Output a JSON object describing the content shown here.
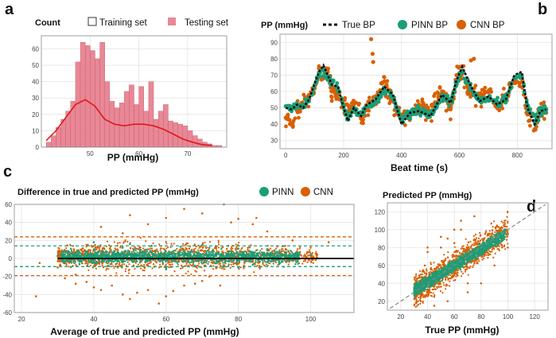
{
  "colors": {
    "hist_fill": "#e88896",
    "hist_stroke": "#c9566a",
    "kde": "#e01818",
    "pinn": "#1a9e77",
    "cnn": "#d95f02",
    "true_bp": "#111111",
    "zero_line": "#000000",
    "identity": "#888888"
  },
  "chart_data": [
    {
      "panel": "a",
      "type": "bar",
      "title": "Count",
      "xlabel": "PP (mmHg)",
      "ylabel": "Count",
      "xlim": [
        40,
        78
      ],
      "ylim": [
        0,
        68
      ],
      "x_ticks": [
        50,
        60,
        70
      ],
      "y_ticks": [
        0,
        10,
        20,
        30,
        40,
        50,
        60
      ],
      "legend": [
        {
          "label": "Training set",
          "style": "open-square"
        },
        {
          "label": "Testing set",
          "style": "filled-square"
        }
      ],
      "bin_start": 41,
      "bin_width": 1,
      "series": [
        {
          "name": "Testing set",
          "values": [
            3,
            7,
            12,
            17,
            22,
            28,
            52,
            64,
            62,
            59,
            54,
            64,
            40,
            28,
            24,
            27,
            34,
            38,
            26,
            37,
            22,
            40,
            17,
            22,
            26,
            16,
            15,
            14,
            13,
            10,
            7,
            5,
            3,
            2,
            1,
            1
          ]
        },
        {
          "name": "Training set (density)",
          "type": "line",
          "x": [
            41,
            43,
            45,
            47,
            49,
            51,
            53,
            55,
            57,
            59,
            61,
            63,
            65,
            67,
            69,
            71,
            73,
            75
          ],
          "values": [
            4,
            10,
            18,
            26,
            29,
            25,
            17,
            14,
            13,
            14,
            14,
            13,
            11,
            8,
            5,
            3,
            1.5,
            1
          ]
        }
      ]
    },
    {
      "panel": "b",
      "type": "scatter",
      "title": "PP (mmHg)",
      "xlabel": "Beat time (s)",
      "ylabel": "PP (mmHg)",
      "xlim": [
        -20,
        920
      ],
      "ylim": [
        25,
        95
      ],
      "x_ticks": [
        0,
        200,
        400,
        600,
        800
      ],
      "y_ticks": [
        30,
        40,
        50,
        60,
        70,
        80,
        90
      ],
      "legend": [
        "True BP",
        "PINN BP",
        "CNN BP"
      ],
      "series": [
        {
          "name": "True BP",
          "style": "dashed",
          "x": [
            0,
            20,
            40,
            60,
            80,
            100,
            115,
            130,
            145,
            160,
            180,
            200,
            215,
            235,
            260,
            280,
            310,
            340,
            370,
            400,
            430,
            460,
            500,
            540,
            570,
            590,
            610,
            640,
            670,
            700,
            730,
            760,
            790,
            815,
            835,
            860,
            880,
            900
          ],
          "values": [
            50,
            49,
            52,
            50,
            55,
            65,
            72,
            76,
            70,
            64,
            63,
            50,
            42,
            50,
            45,
            52,
            55,
            63,
            58,
            40,
            47,
            48,
            45,
            58,
            53,
            67,
            75,
            63,
            54,
            57,
            52,
            55,
            70,
            72,
            50,
            40,
            48,
            49
          ]
        },
        {
          "name": "PINN BP",
          "x": [
            0,
            20,
            40,
            60,
            80,
            100,
            115,
            130,
            145,
            160,
            180,
            200,
            215,
            235,
            260,
            280,
            310,
            340,
            370,
            400,
            430,
            460,
            500,
            540,
            570,
            590,
            610,
            640,
            670,
            700,
            730,
            760,
            790,
            815,
            835,
            860,
            880,
            900
          ],
          "values": [
            51,
            50,
            51,
            51,
            54,
            64,
            70,
            73,
            69,
            65,
            62,
            51,
            43,
            49,
            46,
            51,
            54,
            61,
            57,
            42,
            47,
            48,
            46,
            56,
            54,
            65,
            72,
            62,
            55,
            56,
            53,
            55,
            68,
            70,
            51,
            42,
            48,
            49
          ]
        },
        {
          "name": "CNN BP",
          "x": [
            0,
            20,
            40,
            60,
            80,
            100,
            115,
            130,
            145,
            160,
            180,
            200,
            215,
            235,
            260,
            280,
            310,
            340,
            370,
            400,
            430,
            460,
            500,
            540,
            570,
            590,
            610,
            640,
            670,
            700,
            730,
            760,
            790,
            815,
            835,
            860,
            880,
            900,
            295,
            300,
            302,
            640,
            650
          ],
          "values": [
            44,
            40,
            48,
            52,
            56,
            62,
            74,
            68,
            72,
            60,
            58,
            55,
            46,
            52,
            44,
            49,
            57,
            66,
            54,
            44,
            45,
            52,
            48,
            60,
            50,
            70,
            72,
            58,
            57,
            60,
            50,
            58,
            66,
            68,
            46,
            37,
            50,
            47,
            92,
            83,
            78,
            79,
            80
          ]
        }
      ]
    },
    {
      "panel": "c",
      "type": "scatter",
      "title": "Difference in true and predicted PP (mmHg)",
      "xlabel": "Average of true and predicted PP (mmHg)",
      "ylabel": "Difference in true and predicted PP (mmHg)",
      "xlim": [
        18,
        112
      ],
      "ylim": [
        -60,
        60
      ],
      "x_ticks": [
        20,
        40,
        60,
        80,
        100
      ],
      "y_ticks": [
        -60,
        -40,
        -20,
        0,
        20,
        40,
        60
      ],
      "legend": [
        "PINN",
        "CNN"
      ],
      "reference_lines": [
        {
          "name": "zero",
          "value": 0
        },
        {
          "name": "PINN upper LoA",
          "value": 14
        },
        {
          "name": "PINN lower LoA",
          "value": -9
        },
        {
          "name": "CNN upper LoA",
          "value": 24
        },
        {
          "name": "CNN lower LoA",
          "value": -19
        }
      ],
      "series": [
        {
          "name": "CNN",
          "x": [
            30,
            32,
            35,
            38,
            40,
            42,
            45,
            48,
            50,
            52,
            55,
            58,
            60,
            62,
            65,
            68,
            70,
            72,
            75,
            78,
            80,
            84,
            88,
            95,
            100,
            42,
            50,
            60,
            70,
            76,
            48,
            55,
            65,
            85,
            25,
            35,
            24,
            105
          ],
          "values": [
            -10,
            -22,
            -28,
            -26,
            -32,
            -35,
            -30,
            -40,
            -45,
            -38,
            -35,
            -50,
            -42,
            -36,
            -30,
            -28,
            -25,
            -20,
            -30,
            40,
            44,
            38,
            30,
            20,
            12,
            35,
            48,
            45,
            50,
            60,
            28,
            38,
            55,
            45,
            -5,
            -18,
            -42,
            18
          ]
        },
        {
          "name": "PINN",
          "x": [
            30,
            33,
            36,
            40,
            44,
            48,
            52,
            56,
            60,
            64,
            68,
            72,
            76,
            80,
            84,
            88,
            92,
            96,
            100,
            40,
            50,
            60,
            70,
            80,
            90
          ],
          "values": [
            3,
            8,
            -6,
            10,
            -8,
            12,
            -9,
            14,
            -10,
            13,
            -8,
            12,
            -9,
            11,
            -7,
            10,
            8,
            6,
            4,
            18,
            16,
            -12,
            15,
            -10,
            9
          ]
        }
      ]
    },
    {
      "panel": "d",
      "type": "scatter",
      "title": "Predicted PP (mmHg)",
      "xlabel": "True PP (mmHg)",
      "ylabel": "Predicted PP (mmHg)",
      "xlim": [
        10,
        130
      ],
      "ylim": [
        10,
        130
      ],
      "x_ticks": [
        20,
        40,
        60,
        80,
        100,
        120
      ],
      "y_ticks": [
        20,
        40,
        60,
        80,
        100,
        120
      ],
      "reference_lines": [
        {
          "name": "identity",
          "slope": 1,
          "intercept": 0
        }
      ],
      "series": [
        {
          "name": "CNN",
          "x": [
            30,
            32,
            35,
            38,
            40,
            45,
            50,
            55,
            60,
            65,
            70,
            75,
            80,
            85,
            90,
            95,
            100,
            45,
            50,
            55,
            60,
            65,
            70,
            40,
            35
          ],
          "values": [
            30,
            45,
            20,
            60,
            75,
            25,
            80,
            90,
            100,
            110,
            30,
            115,
            40,
            95,
            60,
            100,
            80,
            15,
            92,
            20,
            85,
            100,
            40,
            80,
            25
          ]
        },
        {
          "name": "PINN",
          "x": [
            30,
            35,
            40,
            45,
            50,
            55,
            60,
            65,
            70,
            75,
            80,
            85,
            90,
            95,
            100
          ],
          "values": [
            35,
            38,
            40,
            45,
            48,
            52,
            58,
            62,
            68,
            72,
            75,
            82,
            88,
            92,
            95
          ]
        }
      ]
    }
  ]
}
